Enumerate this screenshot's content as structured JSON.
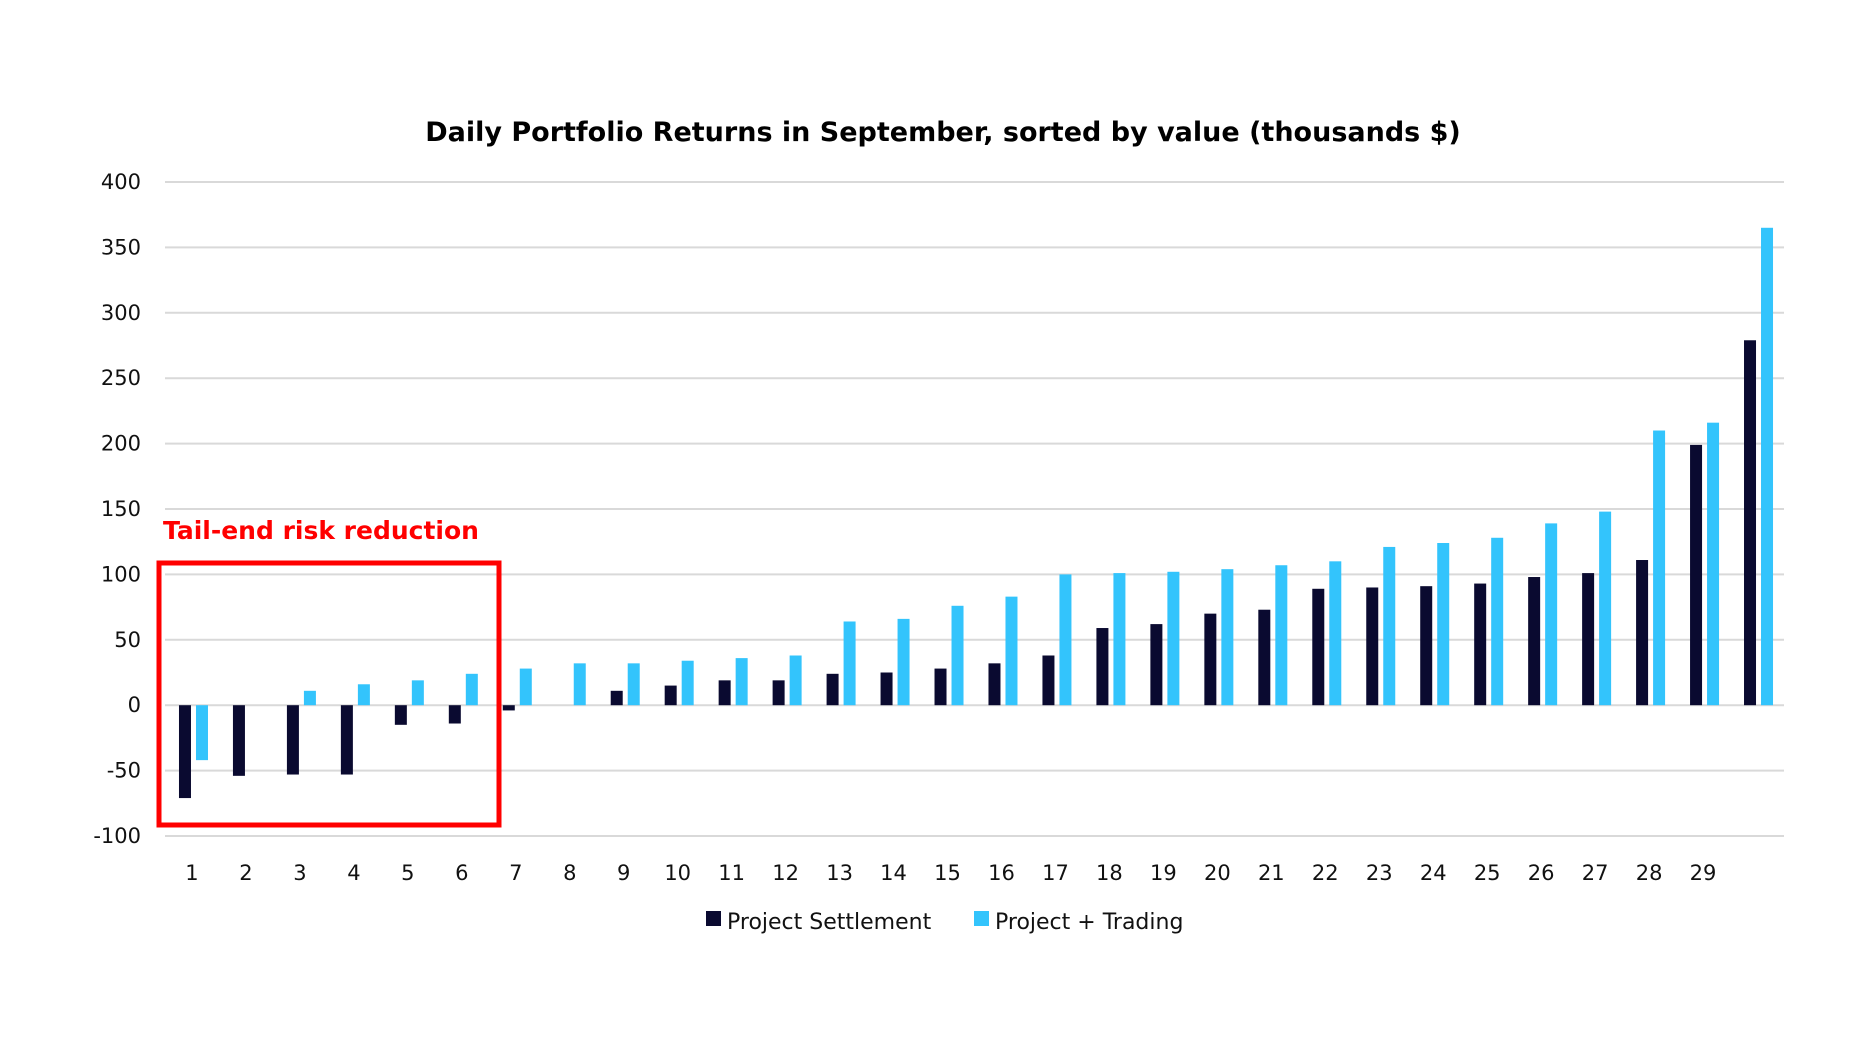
{
  "chart_data": {
    "type": "bar",
    "title": "Daily Portfolio Returns in September, sorted by value (thousands $)",
    "xlabel": "",
    "ylabel": "",
    "ylim": [
      -100,
      400
    ],
    "yticks": [
      -100,
      -50,
      0,
      50,
      100,
      150,
      200,
      250,
      300,
      350,
      400
    ],
    "grid": true,
    "legend_position": "bottom",
    "categories": [
      "1",
      "2",
      "3",
      "4",
      "5",
      "6",
      "7",
      "8",
      "9",
      "10",
      "11",
      "12",
      "13",
      "14",
      "15",
      "16",
      "17",
      "18",
      "19",
      "20",
      "21",
      "22",
      "23",
      "24",
      "25",
      "26",
      "27",
      "28",
      "29",
      ""
    ],
    "series": [
      {
        "name": "Project Settlement",
        "color": "#0a0a30",
        "values": [
          -71,
          -54,
          -53,
          -53,
          -15,
          -14,
          -4,
          0,
          11,
          15,
          19,
          19,
          24,
          25,
          28,
          32,
          38,
          59,
          62,
          70,
          73,
          89,
          90,
          91,
          93,
          98,
          101,
          111,
          199,
          279
        ]
      },
      {
        "name": "Project + Trading",
        "color": "#33c4fc",
        "values": [
          -42,
          0,
          11,
          16,
          19,
          24,
          28,
          32,
          32,
          34,
          36,
          38,
          64,
          66,
          76,
          83,
          100,
          101,
          102,
          104,
          107,
          110,
          121,
          124,
          128,
          139,
          148,
          210,
          216,
          365
        ]
      }
    ],
    "annotations": [
      {
        "text": "Tail-end risk reduction",
        "color": "#ff0000",
        "highlights_categories": [
          "1",
          "6"
        ]
      }
    ]
  }
}
